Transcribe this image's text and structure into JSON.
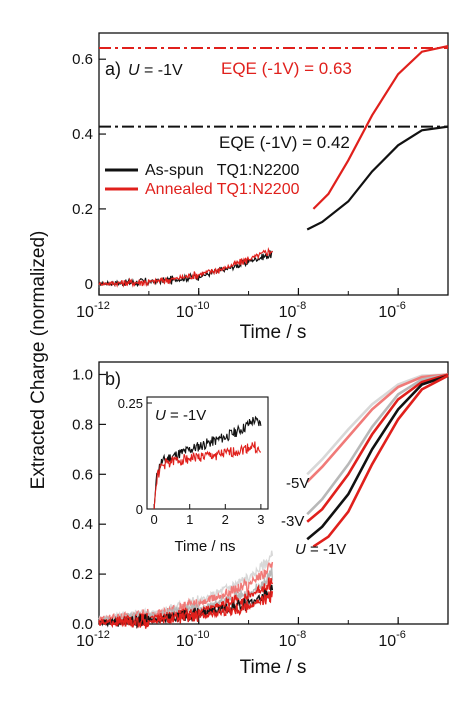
{
  "figure": {
    "ylabel": "Extracted Charge (normalized)",
    "colors": {
      "black": "#111111",
      "red": "#e0201c",
      "grey": "#b8b8b8",
      "light_grey": "#d8d8d8",
      "pink": "#f07a78"
    }
  },
  "chart_data": [
    {
      "type": "line",
      "panel_label": "a)",
      "condition_label": {
        "symbol": "U",
        "text": " = -1V"
      },
      "xlabel": "Time / s",
      "xscale": "log",
      "xlim": [
        1e-12,
        1e-05
      ],
      "ylim": [
        -0.03,
        0.67
      ],
      "x_ticks": [
        {
          "base": "10",
          "exp": "-12",
          "value": 1e-12
        },
        {
          "base": "10",
          "exp": "-10",
          "value": 1e-10
        },
        {
          "base": "10",
          "exp": "-8",
          "value": 1e-08
        },
        {
          "base": "10",
          "exp": "-6",
          "value": 1e-06
        }
      ],
      "y_ticks": [
        "0",
        "0.2",
        "0.4",
        "0.6"
      ],
      "y_tick_values": [
        0,
        0.2,
        0.4,
        0.6
      ],
      "reference_lines": [
        {
          "y": 0.63,
          "color": "#e0201c",
          "label": "EQE (-1V) = 0.63"
        },
        {
          "y": 0.42,
          "color": "#111111",
          "label": "EQE (-1V) = 0.42"
        }
      ],
      "legend": [
        {
          "label": "As-spun   TQ1:N2200",
          "color": "#111111"
        },
        {
          "label": "Annealed TQ1:N2200",
          "color": "#e0201c"
        }
      ],
      "series": [
        {
          "name": "As-spun   TQ1:N2200",
          "color": "#111111",
          "early": {
            "x": [
              1e-12,
              1e-11,
              3e-11,
              1e-10,
              3e-10,
              1e-09,
              3e-09
            ],
            "y": [
              0,
              0.005,
              0.01,
              0.02,
              0.035,
              0.06,
              0.08
            ]
          },
          "late": {
            "x": [
              1.5e-08,
              3e-08,
              1e-07,
              3e-07,
              1e-06,
              3e-06,
              1e-05
            ],
            "y": [
              0.145,
              0.165,
              0.22,
              0.3,
              0.37,
              0.41,
              0.42
            ]
          }
        },
        {
          "name": "Annealed TQ1:N2200",
          "color": "#e0201c",
          "early": {
            "x": [
              1e-12,
              1e-11,
              3e-11,
              1e-10,
              3e-10,
              1e-09,
              3e-09
            ],
            "y": [
              0,
              0.005,
              0.012,
              0.025,
              0.04,
              0.065,
              0.09
            ]
          },
          "late": {
            "x": [
              2e-08,
              4e-08,
              1e-07,
              3e-07,
              1e-06,
              3e-06,
              1e-05
            ],
            "y": [
              0.2,
              0.24,
              0.33,
              0.45,
              0.56,
              0.62,
              0.635
            ]
          }
        }
      ]
    },
    {
      "type": "line",
      "panel_label": "b)",
      "xlabel": "Time / s",
      "xscale": "log",
      "xlim": [
        1e-12,
        1e-05
      ],
      "ylim": [
        0,
        1.05
      ],
      "x_ticks": [
        {
          "base": "10",
          "exp": "-12",
          "value": 1e-12
        },
        {
          "base": "10",
          "exp": "-10",
          "value": 1e-10
        },
        {
          "base": "10",
          "exp": "-8",
          "value": 1e-08
        },
        {
          "base": "10",
          "exp": "-6",
          "value": 1e-06
        }
      ],
      "y_ticks": [
        "0.0",
        "0.2",
        "0.4",
        "0.6",
        "0.8",
        "1.0"
      ],
      "y_tick_values": [
        0,
        0.2,
        0.4,
        0.6,
        0.8,
        1.0
      ],
      "annotations": [
        "-5V",
        "-3V",
        "-1V"
      ],
      "annotation_U": "U",
      "series": [
        {
          "color": "#d8d8d8",
          "early": {
            "x": [
              1e-12,
              1e-11,
              1e-10,
              1e-09,
              3e-09
            ],
            "y": [
              0.02,
              0.04,
              0.09,
              0.18,
              0.27
            ]
          },
          "late": {
            "x": [
              1.5e-08,
              3e-08,
              1e-07,
              3e-07,
              1e-06,
              3e-06,
              1e-05
            ],
            "y": [
              0.6,
              0.66,
              0.78,
              0.88,
              0.96,
              0.995,
              1.0
            ]
          }
        },
        {
          "color": "#f07a78",
          "early": {
            "x": [
              1e-12,
              1e-11,
              1e-10,
              1e-09,
              3e-09
            ],
            "y": [
              0.02,
              0.035,
              0.08,
              0.16,
              0.23
            ]
          },
          "late": {
            "x": [
              1.5e-08,
              3e-08,
              1e-07,
              3e-07,
              1e-06,
              3e-06,
              1e-05
            ],
            "y": [
              0.57,
              0.63,
              0.75,
              0.86,
              0.95,
              0.99,
              1.0
            ]
          }
        },
        {
          "color": "#b8b8b8",
          "early": {
            "x": [
              1e-12,
              1e-11,
              1e-10,
              1e-09,
              3e-09
            ],
            "y": [
              0.01,
              0.03,
              0.06,
              0.12,
              0.2
            ]
          },
          "late": {
            "x": [
              1.5e-08,
              3e-08,
              1e-07,
              3e-07,
              1e-06,
              3e-06,
              1e-05
            ],
            "y": [
              0.44,
              0.5,
              0.64,
              0.79,
              0.92,
              0.98,
              1.0
            ]
          }
        },
        {
          "color": "#e0201c",
          "early": {
            "x": [
              1e-12,
              1e-11,
              1e-10,
              1e-09,
              3e-09
            ],
            "y": [
              0.01,
              0.02,
              0.05,
              0.11,
              0.17
            ]
          },
          "late": {
            "x": [
              1.5e-08,
              3e-08,
              1e-07,
              3e-07,
              1e-06,
              3e-06,
              1e-05
            ],
            "y": [
              0.41,
              0.46,
              0.6,
              0.76,
              0.9,
              0.97,
              1.0
            ]
          }
        },
        {
          "color": "#111111",
          "early": {
            "x": [
              1e-12,
              1e-11,
              1e-10,
              1e-09,
              3e-09
            ],
            "y": [
              0.005,
              0.015,
              0.04,
              0.08,
              0.13
            ]
          },
          "late": {
            "x": [
              1.5e-08,
              3e-08,
              1e-07,
              3e-07,
              1e-06,
              3e-06,
              1e-05
            ],
            "y": [
              0.34,
              0.39,
              0.52,
              0.7,
              0.86,
              0.96,
              0.995
            ]
          }
        },
        {
          "color": "#e0201c",
          "early": {
            "x": [
              1e-12,
              1e-11,
              1e-10,
              1e-09,
              3e-09
            ],
            "y": [
              0.005,
              0.01,
              0.03,
              0.07,
              0.11
            ]
          },
          "late": {
            "x": [
              2e-08,
              4e-08,
              1e-07,
              3e-07,
              1e-06,
              3e-06,
              1e-05
            ],
            "y": [
              0.31,
              0.35,
              0.45,
              0.64,
              0.82,
              0.94,
              0.995
            ]
          }
        }
      ],
      "inset": {
        "type": "line",
        "condition_label": {
          "symbol": "U",
          "text": " = -1V"
        },
        "xlabel": "Time / ns",
        "xlim": [
          -0.2,
          3.2
        ],
        "ylim": [
          0,
          0.25
        ],
        "x_ticks": [
          "0",
          "1",
          "2",
          "3"
        ],
        "x_tick_values": [
          0,
          1,
          2,
          3
        ],
        "y_ticks": [
          "0",
          "0.25"
        ],
        "y_tick_values": [
          0,
          0.25
        ],
        "series": [
          {
            "color": "#111111",
            "x": [
              0,
              0.05,
              0.1,
              0.2,
              0.4,
              0.7,
              1.0,
              1.5,
              2.0,
              2.5,
              2.8,
              3.0
            ],
            "y": [
              0,
              0.06,
              0.09,
              0.11,
              0.12,
              0.13,
              0.14,
              0.155,
              0.17,
              0.19,
              0.21,
              0.2
            ]
          },
          {
            "color": "#e0201c",
            "x": [
              0,
              0.05,
              0.1,
              0.2,
              0.4,
              0.7,
              1.0,
              1.5,
              2.0,
              2.5,
              2.8,
              3.0
            ],
            "y": [
              0,
              0.055,
              0.08,
              0.1,
              0.11,
              0.115,
              0.12,
              0.125,
              0.13,
              0.14,
              0.15,
              0.13
            ]
          }
        ]
      }
    }
  ]
}
